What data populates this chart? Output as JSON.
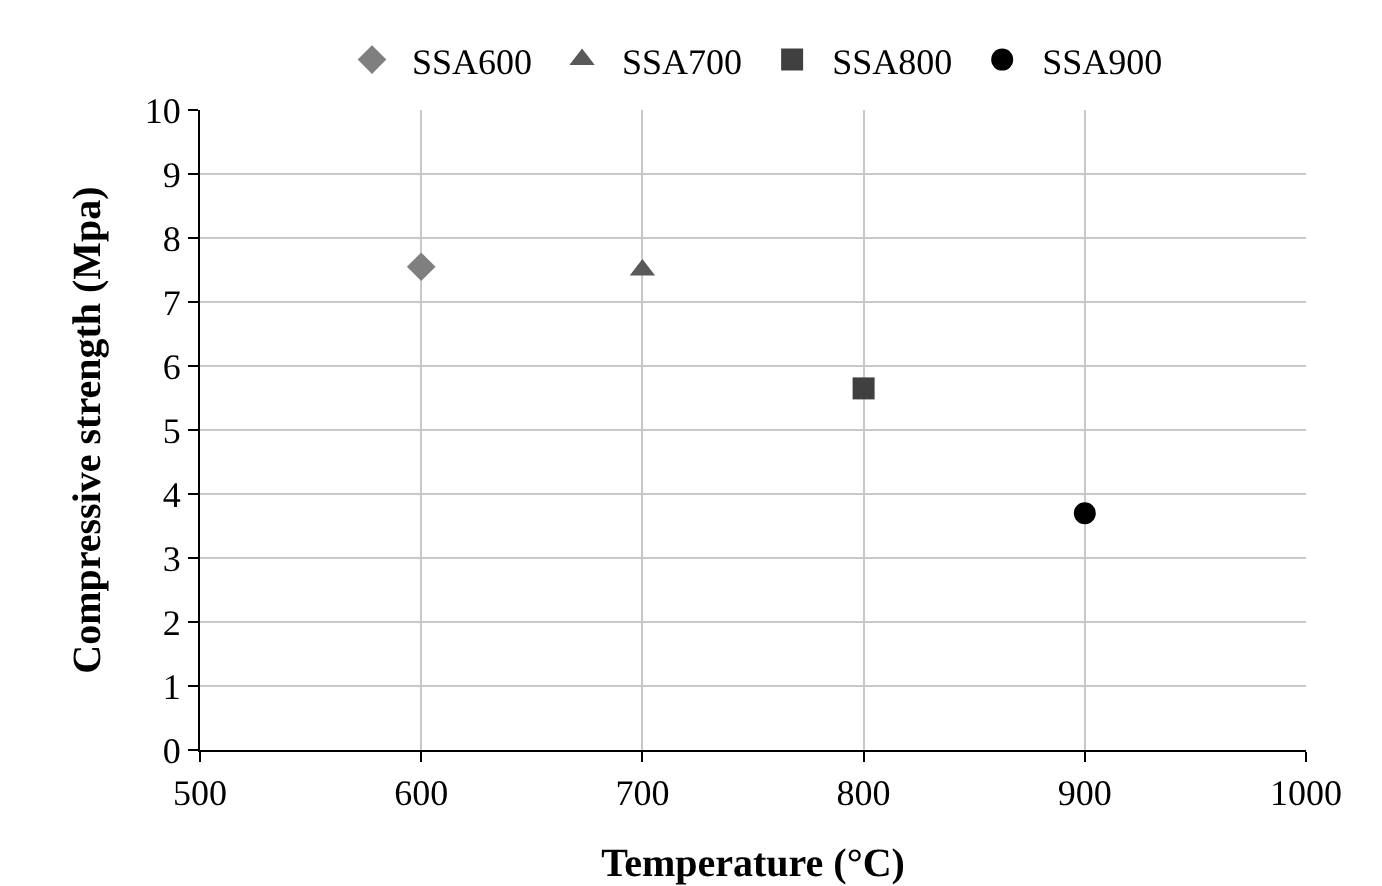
{
  "chart_data": {
    "type": "scatter",
    "xlabel": "Temperature (°C)",
    "ylabel": "Compressive strength (Mpa)",
    "xlim": [
      500,
      1000
    ],
    "xticks": [
      500,
      600,
      700,
      800,
      900,
      1000
    ],
    "ylim": [
      0,
      10
    ],
    "yticks": [
      0,
      1,
      2,
      3,
      4,
      5,
      6,
      7,
      8,
      9,
      10
    ],
    "grid": true,
    "legend": "top",
    "series": [
      {
        "name": "SSA600",
        "color": "#7f7f7f",
        "marker": "diamond",
        "x": [
          600
        ],
        "values": [
          7.55
        ]
      },
      {
        "name": "SSA700",
        "color": "#595959",
        "marker": "triangle",
        "x": [
          700
        ],
        "values": [
          7.5
        ]
      },
      {
        "name": "SSA800",
        "color": "#404040",
        "marker": "square",
        "x": [
          800
        ],
        "values": [
          5.65
        ]
      },
      {
        "name": "SSA900",
        "color": "#000000",
        "marker": "circle",
        "x": [
          900
        ],
        "values": [
          3.7
        ]
      }
    ]
  }
}
